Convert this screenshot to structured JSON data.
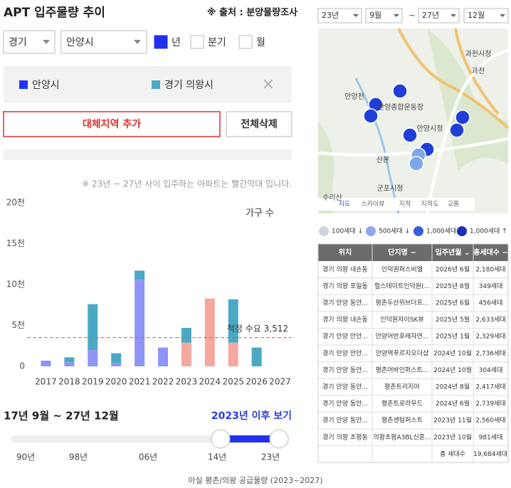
{
  "header": {
    "title": "APT 입주물량 추이",
    "source": "※ 출처 : 분양물량조사"
  },
  "filters": {
    "region": "경기",
    "city": "안양시",
    "periods": [
      {
        "label": "년",
        "checked": true
      },
      {
        "label": "분기",
        "checked": false
      },
      {
        "label": "월",
        "checked": false
      }
    ]
  },
  "remove": "×",
  "buttons": {
    "add": "대체지역 추가",
    "clear": "전체삭제"
  },
  "note": "※ 23년 ~ 27년 사이 입주하는 아파트는 빨간막대 입니다.",
  "chart_data": {
    "type": "bar",
    "stacked": true,
    "y_label": "가구 수",
    "categories": [
      "2017",
      "2018",
      "2019",
      "2020",
      "2021",
      "2022",
      "2023",
      "2024",
      "2025",
      "2026",
      "2027"
    ],
    "series": [
      {
        "name": "안양시",
        "color": "#2233ee",
        "colors": [
          "#8f95f7",
          "#8f95f7",
          "#8f95f7",
          "#8f95f7",
          "#8f95f7",
          "#8f95f7",
          "#f5a89e",
          "#f5a89e",
          "#f5a89e",
          "#f5a89e",
          "#f5a89e"
        ],
        "values": [
          700,
          500,
          2000,
          400,
          10600,
          2300,
          2900,
          8300,
          2900,
          0,
          0
        ]
      },
      {
        "name": "경기 의왕시",
        "color": "#4ba9c4",
        "values": [
          0,
          600,
          5600,
          1200,
          1100,
          0,
          1800,
          0,
          5300,
          2300,
          0
        ]
      }
    ],
    "ylim": [
      0,
      20000
    ],
    "yticks": [
      0,
      {
        "value": 5000,
        "label": "5천"
      },
      {
        "value": 10000,
        "label": "10천"
      },
      {
        "value": 15000,
        "label": "15천"
      },
      {
        "value": 20000,
        "label": "20천"
      }
    ],
    "reference_line": {
      "value": 3512,
      "label": "적정 수요 3,512",
      "color": "#e85a5a"
    }
  },
  "range": {
    "text": "17년 9월 ~ 27년 12월",
    "link": "2023년 이후 보기",
    "ticks": [
      "90년",
      "98년",
      "06년",
      "14년",
      "23년"
    ]
  },
  "date_filter": {
    "from_year": "23년",
    "from_month": "9월",
    "sep": "~",
    "to_year": "27년",
    "to_month": "12월"
  },
  "map": {
    "labels": [
      "과천시청",
      "과천",
      "안양천",
      "안양종합운동장",
      "안양시청",
      "산본",
      "군포시청",
      "수리산"
    ],
    "tabs": [
      "지도",
      "스카이뷰",
      "지적",
      "지적도",
      "교통"
    ]
  },
  "map_legend": [
    "100세대 ↓",
    "500세대 ↓",
    "1,000세대 ↓",
    "1,000세대 ↑"
  ],
  "table": {
    "headers": [
      "위치",
      "단지명 −",
      "입주년월 ⌄",
      "총세대수 −"
    ],
    "rows": [
      [
        "경기 의왕 내손동",
        "인덕원퍼스비엘",
        "2026년 6월",
        "2,180세대"
      ],
      [
        "경기 의왕 포일동",
        "힐스테이트인덕원(...",
        "2025년 8월",
        "349세대"
      ],
      [
        "경기 안양 동안...",
        "평촌두산위브더프...",
        "2025년 6월",
        "456세대"
      ],
      [
        "경기 의왕 내손동",
        "인덕원자이SK뷰",
        "2025년 5월",
        "2,633세대"
      ],
      [
        "경기 안양 만안...",
        "안양어반포레자연...",
        "2025년 1월",
        "2,329세대"
      ],
      [
        "경기 안양 만안...",
        "안양역푸르지오더샵",
        "2024년 10월",
        "2,736세대"
      ],
      [
        "경기 안양 동안...",
        "평촌어바인퍼스트...",
        "2024년 10월",
        "304세대"
      ],
      [
        "경기 안양 동안...",
        "평촌트리지아",
        "2024년 8월",
        "2,417세대"
      ],
      [
        "경기 안양 동안...",
        "평촌트로라우드",
        "2024년 6월",
        "2,739세대"
      ],
      [
        "경기 안양 동안...",
        "평촌센텀퍼스트",
        "2023년 11월",
        "2,560세대"
      ],
      [
        "경기 의왕 초평동",
        "의왕초평A3BL신혼...",
        "2023년 10월",
        "981세대"
      ]
    ],
    "footer": [
      "총 세대수",
      "19,684세대"
    ]
  },
  "caption": "아실 평촌/의왕 공급물량 (2023~2027)"
}
